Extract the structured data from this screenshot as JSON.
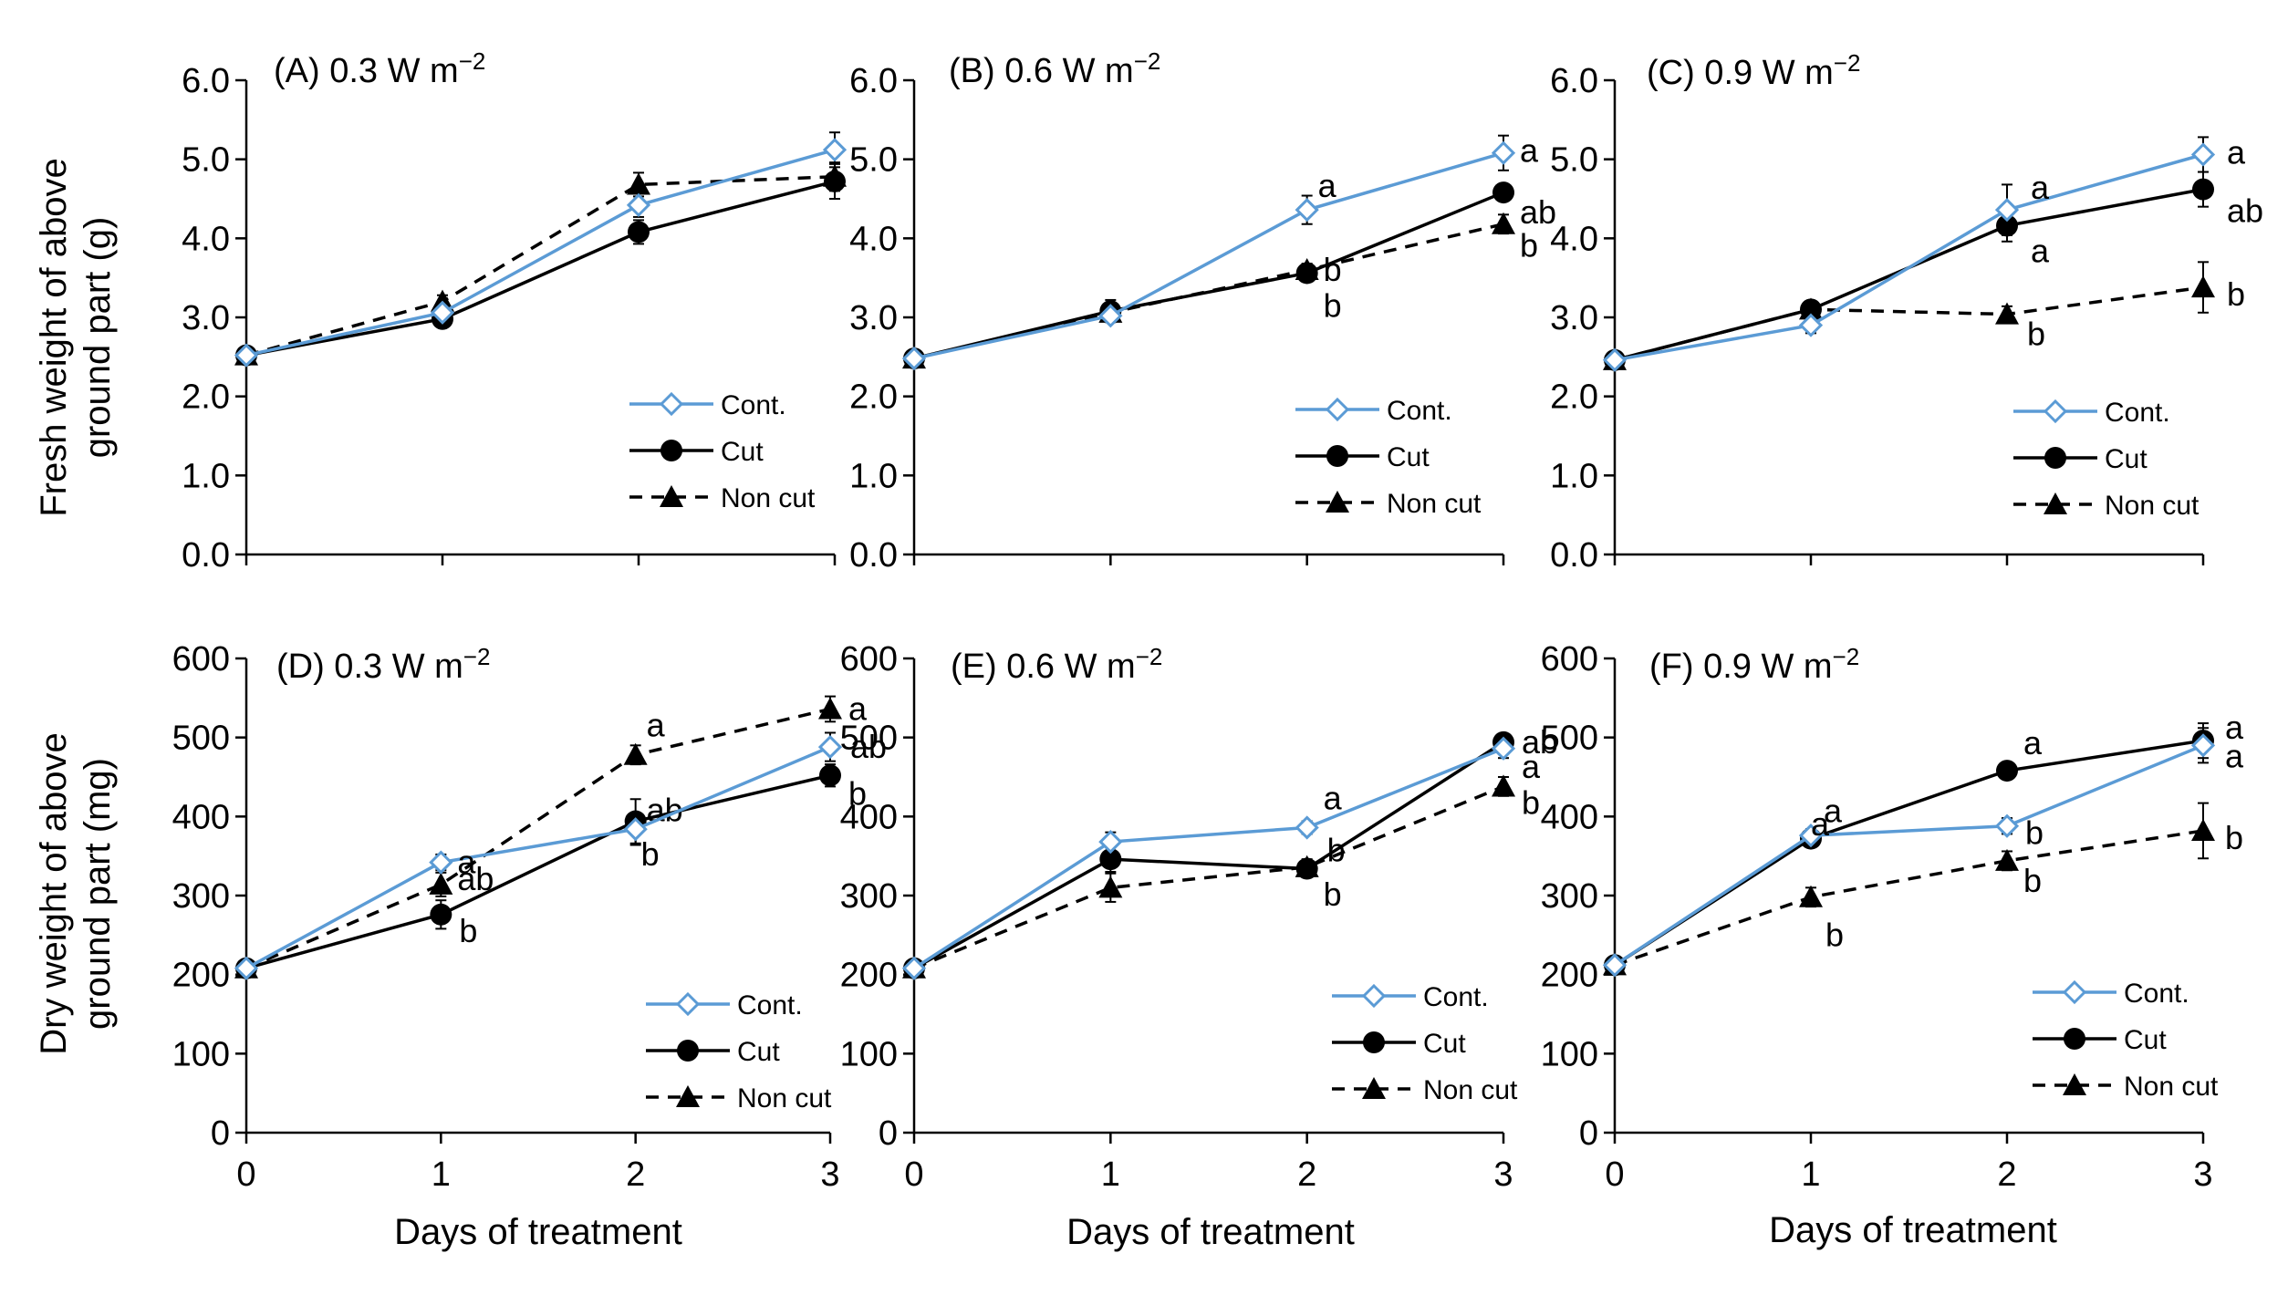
{
  "colors": {
    "cont": "#5b9bd5",
    "cut": "#000000",
    "noncut": "#000000"
  },
  "shared": {
    "xlabel": "Days of treatment",
    "ylabel_top": [
      "Fresh weight of above",
      "ground part (g)"
    ],
    "ylabel_bottom": [
      "Dry weight of above",
      "ground part (mg)"
    ],
    "legend": [
      "Cont.",
      "Cut",
      "Non cut"
    ]
  },
  "chart_data": [
    {
      "id": "A",
      "type": "line",
      "title": "(A) 0.3 W m",
      "title_sup": "−2",
      "x": [
        0,
        1,
        2,
        3
      ],
      "xlim": [
        0,
        3
      ],
      "ylim": [
        0,
        6
      ],
      "yticks": [
        "0.0",
        "1.0",
        "2.0",
        "3.0",
        "4.0",
        "5.0",
        "6.0"
      ],
      "series": [
        {
          "name": "Cont.",
          "values": [
            2.52,
            3.06,
            4.42,
            5.12
          ],
          "errors": [
            0.05,
            0.08,
            0.15,
            0.22
          ],
          "letters": [
            "",
            "",
            "",
            ""
          ]
        },
        {
          "name": "Cut",
          "values": [
            2.52,
            2.98,
            4.08,
            4.72
          ],
          "errors": [
            0.05,
            0.08,
            0.15,
            0.22
          ],
          "letters": [
            "",
            "",
            "",
            ""
          ]
        },
        {
          "name": "Non cut",
          "values": [
            2.52,
            3.2,
            4.68,
            4.78
          ],
          "errors": [
            0.05,
            0.08,
            0.15,
            0.18
          ],
          "letters": [
            "",
            "",
            "",
            ""
          ]
        }
      ]
    },
    {
      "id": "B",
      "type": "line",
      "title": "(B) 0.6 W m",
      "title_sup": "−2",
      "x": [
        0,
        1,
        2,
        3
      ],
      "xlim": [
        0,
        3
      ],
      "ylim": [
        0,
        6
      ],
      "yticks": [
        "0.0",
        "1.0",
        "2.0",
        "3.0",
        "4.0",
        "5.0",
        "6.0"
      ],
      "series": [
        {
          "name": "Cont.",
          "values": [
            2.48,
            3.02,
            4.36,
            5.08
          ],
          "errors": [
            0.05,
            0.08,
            0.18,
            0.22
          ],
          "letters": [
            "",
            "",
            "a",
            "a"
          ]
        },
        {
          "name": "Cut",
          "values": [
            2.48,
            3.08,
            3.56,
            4.58
          ],
          "errors": [
            0.05,
            0.14,
            0.1,
            0.1
          ],
          "letters": [
            "",
            "",
            "b",
            "ab"
          ]
        },
        {
          "name": "Non cut",
          "values": [
            2.48,
            3.06,
            3.6,
            4.18
          ],
          "errors": [
            0.05,
            0.1,
            0.08,
            0.12
          ],
          "letters": [
            "",
            "",
            "b",
            "b"
          ]
        }
      ]
    },
    {
      "id": "C",
      "type": "line",
      "title": "(C) 0.9 W m",
      "title_sup": "−2",
      "x": [
        0,
        1,
        2,
        3
      ],
      "xlim": [
        0,
        3
      ],
      "ylim": [
        0,
        6
      ],
      "yticks": [
        "0.0",
        "1.0",
        "2.0",
        "3.0",
        "4.0",
        "5.0",
        "6.0"
      ],
      "series": [
        {
          "name": "Cont.",
          "values": [
            2.46,
            2.9,
            4.36,
            5.06
          ],
          "errors": [
            0.05,
            0.1,
            0.32,
            0.22
          ],
          "letters": [
            "",
            "",
            "a",
            "a"
          ]
        },
        {
          "name": "Cut",
          "values": [
            2.46,
            3.1,
            4.16,
            4.62
          ],
          "errors": [
            0.05,
            0.1,
            0.2,
            0.22
          ],
          "letters": [
            "",
            "",
            "a",
            "ab"
          ]
        },
        {
          "name": "Non cut",
          "values": [
            2.46,
            3.1,
            3.04,
            3.38
          ],
          "errors": [
            0.05,
            0.1,
            0.1,
            0.32
          ],
          "letters": [
            "",
            "",
            "b",
            "b"
          ]
        }
      ]
    },
    {
      "id": "D",
      "type": "line",
      "title": "(D) 0.3 W m",
      "title_sup": "−2",
      "x": [
        0,
        1,
        2,
        3
      ],
      "xlim": [
        0,
        3
      ],
      "ylim": [
        0,
        600
      ],
      "yticks": [
        "0",
        "100",
        "200",
        "300",
        "400",
        "500",
        "600"
      ],
      "series": [
        {
          "name": "Cont.",
          "values": [
            208,
            342,
            384,
            488
          ],
          "errors": [
            5,
            10,
            20,
            18
          ],
          "letters": [
            "",
            "a",
            "b",
            "ab"
          ]
        },
        {
          "name": "Cut",
          "values": [
            208,
            276,
            394,
            452
          ],
          "errors": [
            5,
            18,
            28,
            14
          ],
          "letters": [
            "",
            "b",
            "ab",
            "b"
          ]
        },
        {
          "name": "Non cut",
          "values": [
            208,
            314,
            478,
            536
          ],
          "errors": [
            5,
            15,
            12,
            16
          ],
          "letters": [
            "",
            "ab",
            "a",
            "a"
          ]
        }
      ]
    },
    {
      "id": "E",
      "type": "line",
      "title": "(E) 0.6 W m",
      "title_sup": "−2",
      "x": [
        0,
        1,
        2,
        3
      ],
      "xlim": [
        0,
        3
      ],
      "ylim": [
        0,
        600
      ],
      "yticks": [
        "0",
        "100",
        "200",
        "300",
        "400",
        "500",
        "600"
      ],
      "series": [
        {
          "name": "Cont.",
          "values": [
            208,
            368,
            386,
            486
          ],
          "errors": [
            5,
            12,
            8,
            12
          ],
          "letters": [
            "",
            "",
            "a",
            "a"
          ]
        },
        {
          "name": "Cut",
          "values": [
            208,
            346,
            334,
            494
          ],
          "errors": [
            5,
            16,
            10,
            10
          ],
          "letters": [
            "",
            "",
            "b",
            "ab"
          ]
        },
        {
          "name": "Non cut",
          "values": [
            208,
            310,
            336,
            438
          ],
          "errors": [
            5,
            18,
            10,
            12
          ],
          "letters": [
            "",
            "",
            "b",
            "b"
          ]
        }
      ]
    },
    {
      "id": "F",
      "type": "line",
      "title": "(F) 0.9 W m",
      "title_sup": "−2",
      "x": [
        0,
        1,
        2,
        3
      ],
      "xlim": [
        0,
        3
      ],
      "ylim": [
        0,
        600
      ],
      "yticks": [
        "0",
        "100",
        "200",
        "300",
        "400",
        "500",
        "600"
      ],
      "series": [
        {
          "name": "Cont.",
          "values": [
            212,
            376,
            388,
            490
          ],
          "errors": [
            5,
            8,
            10,
            22
          ],
          "letters": [
            "",
            "a",
            "b",
            "a"
          ]
        },
        {
          "name": "Cut",
          "values": [
            212,
            372,
            458,
            496
          ],
          "errors": [
            5,
            10,
            10,
            22
          ],
          "letters": [
            "",
            "a",
            "a",
            "a"
          ]
        },
        {
          "name": "Non cut",
          "values": [
            212,
            298,
            344,
            382
          ],
          "errors": [
            5,
            12,
            12,
            35
          ],
          "letters": [
            "",
            "b",
            "b",
            "b"
          ]
        }
      ]
    }
  ]
}
